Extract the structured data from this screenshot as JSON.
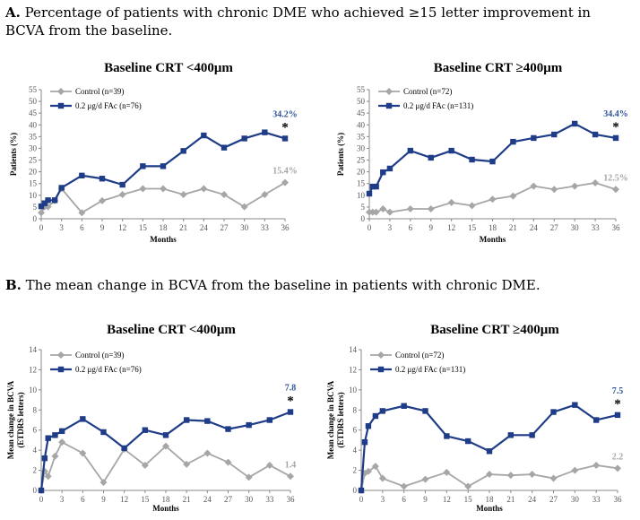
{
  "heading_a": {
    "letter": "A.",
    "text": " Percentage of patients with chronic DME who achieved ≥15 letter improvement in BCVA from the baseline."
  },
  "heading_b": {
    "letter": "B.",
    "text": " The mean change in BCVA from the baseline in patients with chronic DME."
  },
  "colors": {
    "control": "#a6a6a6",
    "fac": "#1f3c88",
    "control_label": "#a6a6a6",
    "fac_label": "#2f5597",
    "axis": "#888888"
  },
  "chart_data": [
    {
      "type": "line",
      "title": "Baseline CRT <400μm",
      "xlabel": "Months",
      "ylabel": "Patients (%)",
      "ylim": [
        0,
        55
      ],
      "yticks": [
        0,
        5,
        10,
        15,
        20,
        25,
        30,
        35,
        40,
        45,
        50,
        55
      ],
      "xticks": [
        0,
        3,
        6,
        9,
        12,
        15,
        18,
        21,
        24,
        27,
        30,
        33,
        36
      ],
      "xlim": [
        0,
        36
      ],
      "legend": "top-left",
      "series": [
        {
          "name": "Control (n=39)",
          "marker": "diamond",
          "x": [
            0,
            0.5,
            1,
            2,
            3,
            6,
            9,
            12,
            15,
            18,
            21,
            24,
            27,
            30,
            33,
            36
          ],
          "y": [
            2.6,
            5.1,
            5.1,
            7.7,
            12.8,
            2.6,
            7.7,
            10.3,
            12.8,
            12.8,
            10.3,
            12.8,
            10.3,
            5.1,
            10.3,
            15.4
          ]
        },
        {
          "name": "0.2 μg/d FAc (n=76)",
          "marker": "square",
          "x": [
            0,
            0.5,
            1,
            2,
            3,
            6,
            9,
            12,
            15,
            18,
            21,
            24,
            27,
            30,
            33,
            36
          ],
          "y": [
            5.3,
            6.6,
            7.9,
            7.9,
            13.2,
            18.4,
            17.1,
            14.5,
            22.4,
            22.4,
            28.9,
            35.5,
            30.3,
            34.2,
            36.8,
            34.2
          ]
        }
      ],
      "end_labels": {
        "fac": "34.2%",
        "control": "15.4%",
        "significance": "*"
      }
    },
    {
      "type": "line",
      "title": "Baseline CRT ≥400μm",
      "xlabel": "Months",
      "ylabel": "Patients (%)",
      "ylim": [
        0,
        55
      ],
      "yticks": [
        0,
        5,
        10,
        15,
        20,
        25,
        30,
        35,
        40,
        45,
        50,
        55
      ],
      "xticks": [
        0,
        3,
        6,
        9,
        12,
        15,
        18,
        21,
        24,
        27,
        30,
        33,
        36
      ],
      "xlim": [
        0,
        36
      ],
      "legend": "top-left",
      "series": [
        {
          "name": "Control (n=72)",
          "marker": "diamond",
          "x": [
            0,
            0.5,
            1,
            2,
            3,
            6,
            9,
            12,
            15,
            18,
            21,
            24,
            27,
            30,
            33,
            36
          ],
          "y": [
            2.8,
            2.8,
            2.8,
            4.2,
            2.8,
            4.2,
            4.2,
            6.9,
            5.6,
            8.3,
            9.7,
            13.9,
            12.5,
            13.9,
            15.3,
            12.5
          ]
        },
        {
          "name": "0.2 μg/d FAc (n=131)",
          "marker": "square",
          "x": [
            0,
            0.5,
            1,
            2,
            3,
            6,
            9,
            12,
            15,
            18,
            21,
            24,
            27,
            30,
            33,
            36
          ],
          "y": [
            10.7,
            13.7,
            13.7,
            19.8,
            21.4,
            29.0,
            26.0,
            29.0,
            25.2,
            24.4,
            32.8,
            34.4,
            35.9,
            40.5,
            35.9,
            34.4
          ]
        }
      ],
      "end_labels": {
        "fac": "34.4%",
        "control": "12.5%",
        "significance": "*"
      }
    },
    {
      "type": "line",
      "title": "Baseline CRT <400μm",
      "xlabel": "Months",
      "ylabel": "Mean change in BCVA (ETDRS letters)",
      "ylim": [
        0,
        14
      ],
      "yticks": [
        0,
        2,
        4,
        6,
        8,
        10,
        12,
        14
      ],
      "xticks": [
        0,
        3,
        6,
        9,
        12,
        15,
        18,
        21,
        24,
        27,
        30,
        33,
        36
      ],
      "xlim": [
        0,
        36
      ],
      "legend": "top-left",
      "series": [
        {
          "name": "Control (n=39)",
          "marker": "diamond",
          "x": [
            0,
            0.5,
            1,
            2,
            3,
            6,
            9,
            12,
            15,
            18,
            21,
            24,
            27,
            30,
            33,
            36
          ],
          "y": [
            0,
            1.9,
            1.4,
            3.4,
            4.8,
            3.7,
            0.8,
            4.1,
            2.5,
            4.4,
            2.6,
            3.7,
            2.8,
            1.3,
            2.5,
            1.4
          ]
        },
        {
          "name": "0.2 μg/d FAc (n=76)",
          "marker": "square",
          "x": [
            0,
            0.5,
            1,
            2,
            3,
            6,
            9,
            12,
            15,
            18,
            21,
            24,
            27,
            30,
            33,
            36
          ],
          "y": [
            0,
            3.2,
            5.2,
            5.5,
            5.9,
            7.1,
            5.8,
            4.2,
            6.0,
            5.5,
            7.0,
            6.9,
            6.1,
            6.5,
            7.0,
            7.8
          ]
        }
      ],
      "end_labels": {
        "fac": "7.8",
        "control": "1.4",
        "significance": "*"
      }
    },
    {
      "type": "line",
      "title": "Baseline CRT ≥400μm",
      "xlabel": "Months",
      "ylabel": "Mean change in BCVA (ETDRS letters)",
      "ylim": [
        0,
        14
      ],
      "yticks": [
        0,
        2,
        4,
        6,
        8,
        10,
        12,
        14
      ],
      "xticks": [
        0,
        3,
        6,
        9,
        12,
        15,
        18,
        21,
        24,
        27,
        30,
        33,
        36
      ],
      "xlim": [
        0,
        36
      ],
      "legend": "top-left",
      "series": [
        {
          "name": "Control (n=72)",
          "marker": "diamond",
          "x": [
            0,
            0.5,
            1,
            2,
            3,
            6,
            9,
            12,
            15,
            18,
            21,
            24,
            27,
            30,
            33,
            36
          ],
          "y": [
            0,
            1.7,
            1.9,
            2.4,
            1.2,
            0.4,
            1.1,
            1.8,
            0.4,
            1.6,
            1.5,
            1.6,
            1.2,
            2.0,
            2.5,
            2.2
          ]
        },
        {
          "name": "0.2 μg/d FAc (n=131)",
          "marker": "square",
          "x": [
            0,
            0.5,
            1,
            2,
            3,
            6,
            9,
            12,
            15,
            18,
            21,
            24,
            27,
            30,
            33,
            36
          ],
          "y": [
            0,
            4.8,
            6.4,
            7.4,
            7.9,
            8.4,
            7.9,
            5.4,
            4.9,
            3.9,
            5.5,
            5.5,
            7.8,
            8.5,
            7.0,
            7.5
          ]
        }
      ],
      "end_labels": {
        "fac": "7.5",
        "control": "2.2",
        "significance": "*"
      }
    }
  ]
}
